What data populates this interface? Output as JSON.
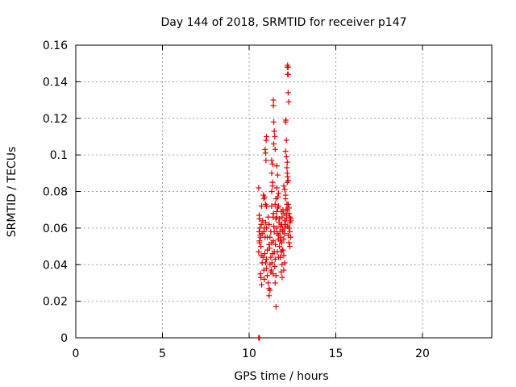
{
  "chart_data": {
    "type": "scatter",
    "title": "Day 144 of 2018, SRMTID for receiver p147",
    "xlabel": "GPS time / hours",
    "ylabel": "SRMTID / TECUs",
    "xlim": [
      0,
      24
    ],
    "ylim": [
      0,
      0.16
    ],
    "xticks": [
      0,
      5,
      10,
      15,
      20
    ],
    "xtick_labels": [
      "0",
      "5",
      "10",
      "15",
      "20"
    ],
    "yticks": [
      0,
      0.02,
      0.04,
      0.06,
      0.08,
      0.1,
      0.12,
      0.14,
      0.16
    ],
    "ytick_labels": [
      "0",
      "0.02",
      "0.04",
      "0.06",
      "0.08",
      "0.1",
      "0.12",
      "0.14",
      "0.16"
    ],
    "grid": true,
    "marker": "+",
    "series_color": "#e00000",
    "series": [
      {
        "name": "SRMTID",
        "points": [
          [
            10.55,
            0.0
          ],
          [
            10.6,
            0.0
          ],
          [
            10.55,
            0.082
          ],
          [
            10.58,
            0.067
          ],
          [
            10.6,
            0.065
          ],
          [
            10.62,
            0.06
          ],
          [
            10.58,
            0.058
          ],
          [
            10.65,
            0.055
          ],
          [
            10.6,
            0.052
          ],
          [
            10.68,
            0.05
          ],
          [
            10.55,
            0.047
          ],
          [
            10.7,
            0.045
          ],
          [
            10.65,
            0.056
          ],
          [
            10.7,
            0.062
          ],
          [
            10.72,
            0.072
          ],
          [
            10.75,
            0.057
          ],
          [
            10.6,
            0.053
          ],
          [
            10.68,
            0.033
          ],
          [
            10.72,
            0.029
          ],
          [
            10.8,
            0.044
          ],
          [
            10.78,
            0.064
          ],
          [
            10.82,
            0.078
          ],
          [
            10.85,
            0.076
          ],
          [
            10.9,
            0.077
          ],
          [
            10.88,
            0.06
          ],
          [
            10.92,
            0.055
          ],
          [
            10.95,
            0.063
          ],
          [
            10.9,
            0.046
          ],
          [
            10.95,
            0.041
          ],
          [
            11.0,
            0.038
          ],
          [
            10.85,
            0.058
          ],
          [
            10.95,
            0.073
          ],
          [
            11.0,
            0.072
          ],
          [
            11.05,
            0.048
          ],
          [
            11.05,
            0.055
          ],
          [
            11.0,
            0.06
          ],
          [
            11.1,
            0.03
          ],
          [
            11.05,
            0.034
          ],
          [
            11.15,
            0.027
          ],
          [
            11.15,
            0.023
          ],
          [
            11.2,
            0.026
          ],
          [
            11.1,
            0.066
          ],
          [
            11.15,
            0.062
          ],
          [
            11.2,
            0.055
          ],
          [
            11.18,
            0.049
          ],
          [
            11.25,
            0.044
          ],
          [
            11.2,
            0.04
          ],
          [
            11.25,
            0.036
          ],
          [
            11.15,
            0.051
          ],
          [
            11.3,
            0.08
          ],
          [
            11.35,
            0.083
          ],
          [
            11.35,
            0.085
          ],
          [
            11.3,
            0.072
          ],
          [
            11.4,
            0.068
          ],
          [
            11.38,
            0.066
          ],
          [
            11.42,
            0.061
          ],
          [
            11.45,
            0.058
          ],
          [
            11.4,
            0.053
          ],
          [
            11.45,
            0.047
          ],
          [
            11.5,
            0.043
          ],
          [
            11.48,
            0.039
          ],
          [
            11.55,
            0.034
          ],
          [
            11.5,
            0.03
          ],
          [
            11.55,
            0.017
          ],
          [
            11.3,
            0.097
          ],
          [
            11.3,
            0.09
          ],
          [
            11.35,
            0.095
          ],
          [
            11.4,
            0.13
          ],
          [
            11.4,
            0.127
          ],
          [
            11.42,
            0.118
          ],
          [
            11.45,
            0.113
          ],
          [
            11.48,
            0.11
          ],
          [
            11.42,
            0.106
          ],
          [
            11.5,
            0.103
          ],
          [
            11.6,
            0.094
          ],
          [
            11.65,
            0.089
          ],
          [
            11.6,
            0.082
          ],
          [
            11.7,
            0.079
          ],
          [
            11.65,
            0.077
          ],
          [
            11.7,
            0.072
          ],
          [
            11.6,
            0.066
          ],
          [
            11.75,
            0.065
          ],
          [
            11.72,
            0.063
          ],
          [
            11.8,
            0.061
          ],
          [
            11.78,
            0.058
          ],
          [
            11.7,
            0.056
          ],
          [
            11.8,
            0.053
          ],
          [
            11.75,
            0.05
          ],
          [
            11.85,
            0.047
          ],
          [
            11.8,
            0.044
          ],
          [
            11.9,
            0.04
          ],
          [
            11.85,
            0.036
          ],
          [
            11.9,
            0.033
          ],
          [
            11.95,
            0.058
          ],
          [
            12.0,
            0.054
          ],
          [
            11.95,
            0.048
          ],
          [
            12.0,
            0.045
          ],
          [
            12.05,
            0.041
          ],
          [
            12.0,
            0.037
          ],
          [
            11.95,
            0.07
          ],
          [
            12.0,
            0.068
          ],
          [
            12.05,
            0.064
          ],
          [
            12.05,
            0.06
          ],
          [
            12.0,
            0.083
          ],
          [
            12.05,
            0.081
          ],
          [
            12.1,
            0.076
          ],
          [
            12.1,
            0.078
          ],
          [
            12.1,
            0.118
          ],
          [
            12.12,
            0.119
          ],
          [
            12.15,
            0.108
          ],
          [
            12.1,
            0.102
          ],
          [
            12.15,
            0.099
          ],
          [
            12.2,
            0.096
          ],
          [
            12.18,
            0.093
          ],
          [
            12.2,
            0.09
          ],
          [
            12.22,
            0.088
          ],
          [
            12.25,
            0.086
          ],
          [
            12.2,
            0.085
          ],
          [
            12.2,
            0.148
          ],
          [
            12.22,
            0.149
          ],
          [
            12.25,
            0.148
          ],
          [
            12.22,
            0.144
          ],
          [
            12.25,
            0.144
          ],
          [
            12.25,
            0.134
          ],
          [
            12.28,
            0.129
          ],
          [
            12.25,
            0.073
          ],
          [
            12.3,
            0.071
          ],
          [
            12.3,
            0.068
          ],
          [
            12.35,
            0.066
          ],
          [
            12.4,
            0.064
          ],
          [
            12.35,
            0.063
          ],
          [
            12.4,
            0.065
          ],
          [
            12.3,
            0.06
          ],
          [
            12.35,
            0.058
          ],
          [
            12.4,
            0.055
          ],
          [
            12.3,
            0.052
          ],
          [
            12.35,
            0.05
          ],
          [
            10.95,
            0.101
          ],
          [
            10.98,
            0.108
          ],
          [
            11.0,
            0.11
          ],
          [
            10.92,
            0.103
          ],
          [
            10.97,
            0.097
          ],
          [
            11.55,
            0.065
          ],
          [
            11.6,
            0.069
          ],
          [
            11.5,
            0.073
          ],
          [
            11.55,
            0.076
          ],
          [
            11.65,
            0.071
          ],
          [
            11.58,
            0.06
          ],
          [
            11.62,
            0.057
          ],
          [
            11.68,
            0.054
          ],
          [
            11.52,
            0.051
          ],
          [
            11.63,
            0.047
          ],
          [
            11.7,
            0.044
          ],
          [
            10.65,
            0.035
          ],
          [
            10.75,
            0.041
          ],
          [
            10.85,
            0.037
          ],
          [
            10.88,
            0.032
          ],
          [
            11.0,
            0.043
          ],
          [
            11.25,
            0.058
          ],
          [
            11.3,
            0.052
          ],
          [
            11.35,
            0.046
          ],
          [
            11.32,
            0.041
          ],
          [
            11.28,
            0.037
          ],
          [
            11.38,
            0.035
          ],
          [
            11.85,
            0.069
          ],
          [
            11.9,
            0.066
          ],
          [
            11.88,
            0.062
          ],
          [
            11.92,
            0.059
          ],
          [
            11.82,
            0.055
          ],
          [
            11.88,
            0.052
          ],
          [
            11.92,
            0.048
          ],
          [
            12.05,
            0.057
          ],
          [
            12.1,
            0.062
          ],
          [
            12.15,
            0.067
          ],
          [
            12.12,
            0.07
          ],
          [
            12.18,
            0.073
          ],
          [
            12.2,
            0.07
          ],
          [
            12.15,
            0.065
          ],
          [
            12.22,
            0.061
          ],
          [
            12.25,
            0.056
          ]
        ]
      }
    ]
  }
}
